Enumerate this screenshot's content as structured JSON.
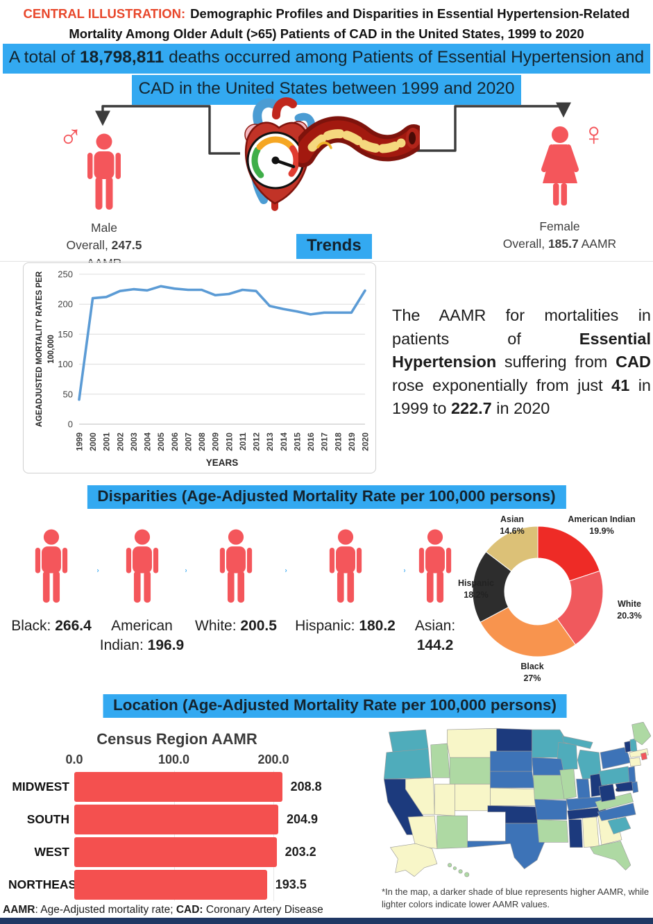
{
  "header": {
    "label": "CENTRAL ILLUSTRATION:",
    "title": "Demographic Profiles and Disparities in Essential Hypertension-Related Mortality Among Older Adult (>65) Patients of CAD in the United States, 1999 to 2020"
  },
  "banner": {
    "line1": [
      {
        "t": "A total of "
      },
      {
        "t": "18,798,811",
        "b": true
      },
      {
        "t": " deaths occurred among Patients of Essential Hypertension and"
      }
    ],
    "line2": [
      {
        "t": "CAD in the United States between 1999 and 2020"
      }
    ]
  },
  "hero": {
    "male": {
      "name": "Male",
      "symbol": "♂",
      "overall": [
        {
          "t": "Overall, "
        },
        {
          "t": "247.5",
          "b": true
        },
        {
          "t": " AAMR"
        }
      ]
    },
    "female": {
      "name": "Female",
      "symbol": "♀",
      "overall": [
        {
          "t": "Overall, "
        },
        {
          "t": "185.7",
          "b": true
        },
        {
          "t": " AAMR"
        }
      ]
    }
  },
  "trends": {
    "heading": "Trends",
    "summary": [
      {
        "t": "The AAMR for mortalities in patients of "
      },
      {
        "t": "Essential Hypertension",
        "b": true
      },
      {
        "t": " suffering from "
      },
      {
        "t": "CAD",
        "b": true
      },
      {
        "t": " rose exponentially from just "
      },
      {
        "t": "41",
        "b": true
      },
      {
        "t": " in 1999 to "
      },
      {
        "t": "222.7",
        "b": true
      },
      {
        "t": " in 2020"
      }
    ]
  },
  "disparities": {
    "heading": "Disparities (Age-Adjusted Mortality Rate per 100,000 persons)",
    "groups": [
      {
        "label": "Black",
        "value": "266.4"
      },
      {
        "label": "American Indian",
        "value": "196.9"
      },
      {
        "label": "White",
        "value": "200.5"
      },
      {
        "label": "Hispanic",
        "value": "180.2"
      },
      {
        "label": "Asian",
        "value": "144.2"
      }
    ]
  },
  "location": {
    "heading": "Location (Age-Adjusted Mortality Rate per 100,000 persons)"
  },
  "footer": [
    {
      "t": "AAMR",
      "b": true
    },
    {
      "t": ": Age-Adjusted mortality rate; "
    },
    {
      "t": "CAD:",
      "b": true
    },
    {
      "t": " Coronary Artery Disease"
    }
  ],
  "colors": {
    "accent_blue": "#33A9F1",
    "coral": "#F4565B",
    "bar_red": "#F4504F",
    "line_blue": "#5B9BD5",
    "label_red": "#E8472B",
    "navy_bar": "#203864"
  },
  "chart_data": [
    {
      "type": "line",
      "title": "Trends",
      "ylabel": "AGEADJUSTED MORTALITY RATES PER 100,000",
      "ylabel_lines": [
        "AGEADJUSTED MORTALITY RATES PER",
        "100,000"
      ],
      "xlabel": "YEARS",
      "ylim": [
        0,
        250
      ],
      "yticks": [
        0,
        50,
        100,
        150,
        200,
        250
      ],
      "grid": true,
      "x": [
        1999,
        2000,
        2001,
        2002,
        2003,
        2004,
        2005,
        2006,
        2007,
        2008,
        2009,
        2010,
        2011,
        2012,
        2013,
        2014,
        2015,
        2016,
        2017,
        2018,
        2019,
        2020
      ],
      "values": [
        41,
        210,
        212,
        222,
        225,
        223,
        230,
        226,
        224,
        224,
        215,
        217,
        224,
        222,
        197,
        192,
        188,
        183,
        186,
        186,
        186,
        222.7
      ],
      "color": "#5B9BD5"
    },
    {
      "type": "pie",
      "donut": true,
      "start": "top",
      "direction": "clockwise",
      "slices": [
        {
          "label": "American Indian",
          "pct": 19.9,
          "pct_label": "19.9%",
          "color": "#EE2B26"
        },
        {
          "label": "White",
          "pct": 20.3,
          "pct_label": "20.3%",
          "color": "#F0595D"
        },
        {
          "label": "Black",
          "pct": 27,
          "pct_label": "27%",
          "color": "#F8944E"
        },
        {
          "label": "Hispanic",
          "pct": 18.2,
          "pct_label": "18.2%",
          "color": "#2D2D2D"
        },
        {
          "label": "Asian",
          "pct": 14.6,
          "pct_label": "14.6%",
          "color": "#DCC177"
        }
      ]
    },
    {
      "type": "bar",
      "orientation": "horizontal",
      "title": "Census Region AAMR",
      "categories": [
        "MIDWEST",
        "SOUTH",
        "WEST",
        "NORTHEAST"
      ],
      "values": [
        208.8,
        204.9,
        203.2,
        193.5
      ],
      "value_labels": [
        "208.8",
        "204.9",
        "203.2",
        "193.5"
      ],
      "xticks": [
        "0.0",
        "100.0",
        "200.0"
      ],
      "xtick_values": [
        0,
        100,
        200
      ],
      "xlim": [
        0,
        230
      ],
      "bar_color": "#F4504F"
    },
    {
      "type": "heatmap",
      "subject": "US state AAMR choropleth",
      "note": "*In the map, a darker shade of blue represents higher AAMR, while lighter colors indicate lower AAMR values.",
      "palette": {
        "1": "#F8F6C8",
        "2": "#AED9A3",
        "3": "#4FACBB",
        "4": "#3D73B7",
        "5": "#1C3A7D"
      },
      "special_colors": {
        "salmon": "#F2575C"
      },
      "states": {
        "WA": 3,
        "OR": 3,
        "CA": 5,
        "NV": 1,
        "ID": 2,
        "MT": 1,
        "WY": 2,
        "UT": 1,
        "CO": 1,
        "AZ": 1,
        "NM": 2,
        "ND": 5,
        "SD": 4,
        "NE": 4,
        "KS": 1,
        "OK": 5,
        "TX": 4,
        "MN": 3,
        "IA": 4,
        "MO": 2,
        "AR": 4,
        "LA": 2,
        "WI": 3,
        "IL": 2,
        "MI": 3,
        "IN": 4,
        "OH": 5,
        "KY": 4,
        "TN": 5,
        "MS": 5,
        "AL": 1,
        "GA": 1,
        "FL": 2,
        "SC": 3,
        "NC": 4,
        "VA": 2,
        "WV": 5,
        "PA": 3,
        "NY": 4,
        "NJ": 4,
        "DE": 4,
        "MD": 5,
        "VT": 5,
        "NH": 3,
        "ME": 2,
        "MA": 1,
        "CT": 1,
        "RI": "salmon",
        "DC": 5,
        "AK": 1,
        "HI": 2
      }
    }
  ]
}
